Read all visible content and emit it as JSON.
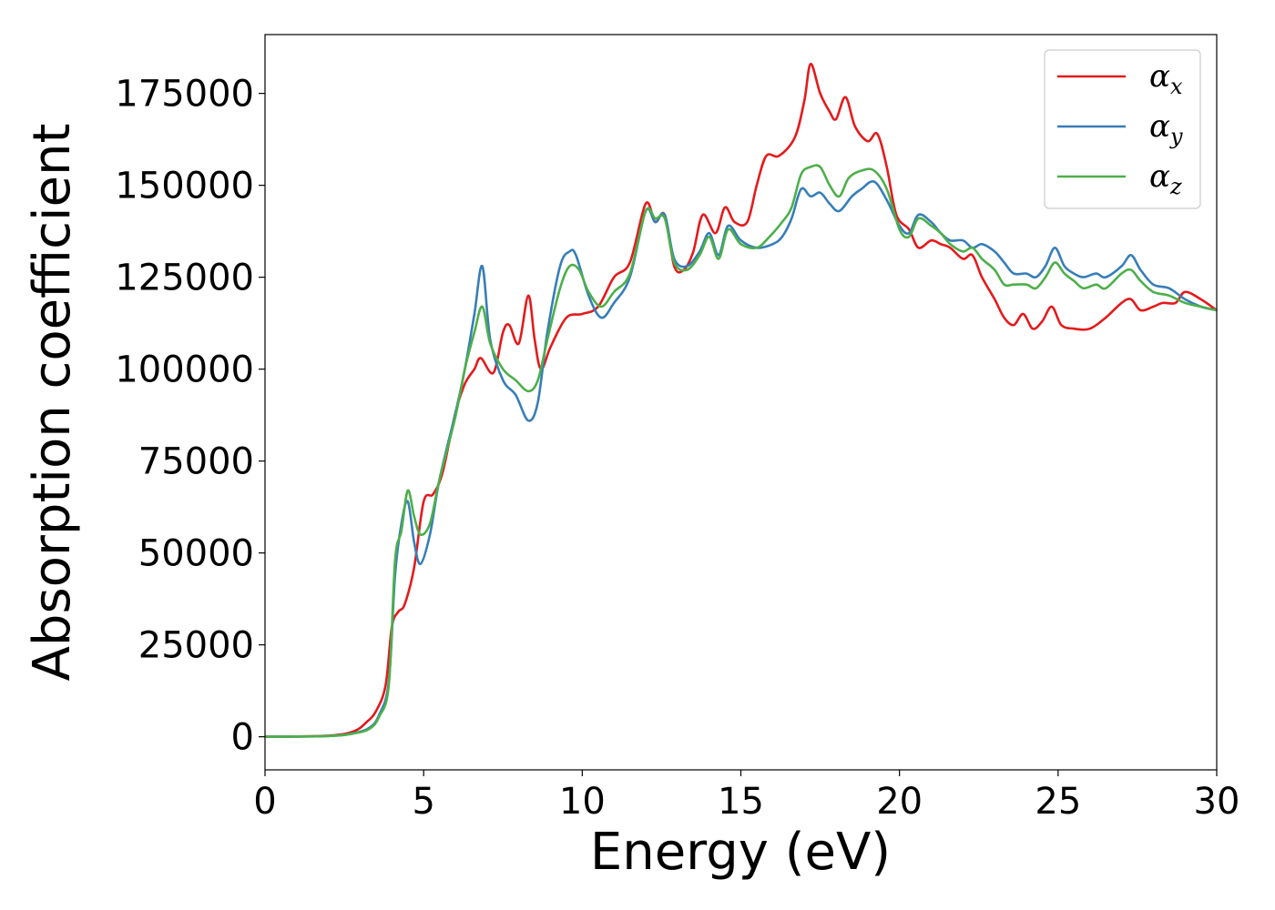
{
  "chart_data": {
    "type": "line",
    "xlabel": "Energy (eV)",
    "ylabel": "Absorption coefficient",
    "xlim": [
      0,
      30
    ],
    "ylim": [
      -9000,
      191000
    ],
    "x_ticks": [
      0,
      5,
      10,
      15,
      20,
      25,
      30
    ],
    "x_tick_labels": [
      "0",
      "5",
      "10",
      "15",
      "20",
      "25",
      "30"
    ],
    "y_ticks": [
      0,
      25000,
      50000,
      75000,
      100000,
      125000,
      150000,
      175000
    ],
    "y_tick_labels": [
      "0",
      "25000",
      "50000",
      "75000",
      "100000",
      "125000",
      "150000",
      "175000"
    ],
    "grid": false,
    "legend_position": "top-right",
    "colors": {
      "x": "#e41a1c",
      "y": "#377eb8",
      "z": "#4daf4a"
    },
    "series": [
      {
        "name": "α_x",
        "legend_base": "α",
        "legend_sub": "x",
        "color": "#e41a1c",
        "points": [
          [
            0,
            0
          ],
          [
            2,
            300
          ],
          [
            2.8,
            1500
          ],
          [
            3.2,
            4000
          ],
          [
            3.5,
            7000
          ],
          [
            3.8,
            14000
          ],
          [
            4,
            30000
          ],
          [
            4.2,
            34000
          ],
          [
            4.4,
            36000
          ],
          [
            4.7,
            46000
          ],
          [
            5,
            64000
          ],
          [
            5.3,
            66000
          ],
          [
            5.6,
            72000
          ],
          [
            6,
            88000
          ],
          [
            6.3,
            96000
          ],
          [
            6.6,
            100000
          ],
          [
            6.8,
            103000
          ],
          [
            7.2,
            99000
          ],
          [
            7.5,
            110000
          ],
          [
            7.7,
            112000
          ],
          [
            8,
            107000
          ],
          [
            8.3,
            120000
          ],
          [
            8.5,
            108000
          ],
          [
            8.7,
            100000
          ],
          [
            9,
            106000
          ],
          [
            9.5,
            114000
          ],
          [
            10,
            115000
          ],
          [
            10.5,
            117000
          ],
          [
            11,
            125000
          ],
          [
            11.5,
            129000
          ],
          [
            12,
            145000
          ],
          [
            12.3,
            140000
          ],
          [
            12.6,
            142000
          ],
          [
            12.9,
            128000
          ],
          [
            13.2,
            127000
          ],
          [
            13.5,
            132000
          ],
          [
            13.8,
            142000
          ],
          [
            14.2,
            137000
          ],
          [
            14.5,
            144000
          ],
          [
            14.8,
            140000
          ],
          [
            15.2,
            140000
          ],
          [
            15.5,
            150000
          ],
          [
            15.8,
            158000
          ],
          [
            16.2,
            158000
          ],
          [
            16.7,
            163000
          ],
          [
            17,
            173000
          ],
          [
            17.2,
            183000
          ],
          [
            17.5,
            175000
          ],
          [
            17.8,
            170000
          ],
          [
            18,
            168000
          ],
          [
            18.3,
            174000
          ],
          [
            18.6,
            166000
          ],
          [
            19,
            162000
          ],
          [
            19.3,
            164000
          ],
          [
            19.6,
            155000
          ],
          [
            19.9,
            142000
          ],
          [
            20.3,
            138000
          ],
          [
            20.6,
            133000
          ],
          [
            21,
            135000
          ],
          [
            21.3,
            134000
          ],
          [
            21.6,
            133000
          ],
          [
            22,
            130000
          ],
          [
            22.3,
            131000
          ],
          [
            22.6,
            125000
          ],
          [
            23,
            119000
          ],
          [
            23.3,
            114000
          ],
          [
            23.6,
            112000
          ],
          [
            23.9,
            115000
          ],
          [
            24.2,
            111000
          ],
          [
            24.5,
            113000
          ],
          [
            24.8,
            117000
          ],
          [
            25.1,
            112000
          ],
          [
            25.5,
            111000
          ],
          [
            26,
            111000
          ],
          [
            26.5,
            114000
          ],
          [
            27,
            118000
          ],
          [
            27.3,
            119000
          ],
          [
            27.6,
            116000
          ],
          [
            28,
            117000
          ],
          [
            28.3,
            118000
          ],
          [
            28.7,
            118000
          ],
          [
            29,
            121000
          ],
          [
            29.5,
            119000
          ],
          [
            30,
            116000
          ]
        ]
      },
      {
        "name": "α_y",
        "legend_base": "α",
        "legend_sub": "y",
        "color": "#377eb8",
        "points": [
          [
            0,
            0
          ],
          [
            2,
            200
          ],
          [
            2.8,
            1000
          ],
          [
            3.3,
            2500
          ],
          [
            3.6,
            6000
          ],
          [
            3.9,
            15000
          ],
          [
            4.1,
            44000
          ],
          [
            4.3,
            58000
          ],
          [
            4.5,
            64000
          ],
          [
            4.7,
            53000
          ],
          [
            4.9,
            47000
          ],
          [
            5.2,
            55000
          ],
          [
            5.5,
            70000
          ],
          [
            6,
            88000
          ],
          [
            6.3,
            100000
          ],
          [
            6.6,
            115000
          ],
          [
            6.85,
            128000
          ],
          [
            7.1,
            108000
          ],
          [
            7.5,
            97000
          ],
          [
            7.9,
            93000
          ],
          [
            8.3,
            86000
          ],
          [
            8.6,
            91000
          ],
          [
            8.9,
            110000
          ],
          [
            9.3,
            128000
          ],
          [
            9.6,
            132000
          ],
          [
            9.8,
            131000
          ],
          [
            10.2,
            120000
          ],
          [
            10.6,
            114000
          ],
          [
            11,
            118000
          ],
          [
            11.5,
            125000
          ],
          [
            12,
            143000
          ],
          [
            12.3,
            140000
          ],
          [
            12.6,
            142000
          ],
          [
            12.9,
            130000
          ],
          [
            13.3,
            128000
          ],
          [
            13.7,
            132000
          ],
          [
            14,
            137000
          ],
          [
            14.3,
            131000
          ],
          [
            14.6,
            139000
          ],
          [
            15,
            135000
          ],
          [
            15.5,
            133000
          ],
          [
            16,
            134000
          ],
          [
            16.3,
            136000
          ],
          [
            16.6,
            141000
          ],
          [
            16.9,
            149000
          ],
          [
            17.2,
            147000
          ],
          [
            17.5,
            148000
          ],
          [
            17.8,
            145000
          ],
          [
            18.1,
            143000
          ],
          [
            18.5,
            147000
          ],
          [
            18.8,
            149000
          ],
          [
            19.2,
            151000
          ],
          [
            19.6,
            146000
          ],
          [
            20,
            139000
          ],
          [
            20.3,
            137000
          ],
          [
            20.6,
            142000
          ],
          [
            21,
            140000
          ],
          [
            21.3,
            137000
          ],
          [
            21.6,
            135000
          ],
          [
            22,
            135000
          ],
          [
            22.3,
            133000
          ],
          [
            22.6,
            134000
          ],
          [
            23,
            132000
          ],
          [
            23.3,
            129000
          ],
          [
            23.6,
            126000
          ],
          [
            24,
            126000
          ],
          [
            24.3,
            125000
          ],
          [
            24.6,
            128000
          ],
          [
            24.9,
            133000
          ],
          [
            25.2,
            128000
          ],
          [
            25.5,
            126000
          ],
          [
            25.8,
            125000
          ],
          [
            26.2,
            126000
          ],
          [
            26.5,
            125000
          ],
          [
            27,
            128000
          ],
          [
            27.3,
            131000
          ],
          [
            27.6,
            127000
          ],
          [
            28,
            123000
          ],
          [
            28.5,
            122000
          ],
          [
            29,
            119000
          ],
          [
            29.5,
            117000
          ],
          [
            30,
            116000
          ]
        ]
      },
      {
        "name": "α_z",
        "legend_base": "α",
        "legend_sub": "z",
        "color": "#4daf4a",
        "points": [
          [
            0,
            0
          ],
          [
            2,
            200
          ],
          [
            2.8,
            900
          ],
          [
            3.3,
            2200
          ],
          [
            3.6,
            5500
          ],
          [
            3.9,
            14000
          ],
          [
            4.1,
            48000
          ],
          [
            4.3,
            56000
          ],
          [
            4.5,
            67000
          ],
          [
            4.7,
            60000
          ],
          [
            4.9,
            55000
          ],
          [
            5.2,
            58000
          ],
          [
            5.5,
            70000
          ],
          [
            6,
            87000
          ],
          [
            6.3,
            100000
          ],
          [
            6.6,
            110000
          ],
          [
            6.85,
            117000
          ],
          [
            7.1,
            107000
          ],
          [
            7.5,
            100000
          ],
          [
            7.9,
            97000
          ],
          [
            8.3,
            94000
          ],
          [
            8.6,
            97000
          ],
          [
            8.9,
            108000
          ],
          [
            9.3,
            122000
          ],
          [
            9.6,
            128000
          ],
          [
            9.9,
            127000
          ],
          [
            10.2,
            121000
          ],
          [
            10.6,
            117000
          ],
          [
            11,
            121000
          ],
          [
            11.5,
            126000
          ],
          [
            12,
            143000
          ],
          [
            12.3,
            141000
          ],
          [
            12.6,
            141000
          ],
          [
            12.9,
            129000
          ],
          [
            13.3,
            127000
          ],
          [
            13.7,
            131000
          ],
          [
            14,
            136000
          ],
          [
            14.3,
            130000
          ],
          [
            14.6,
            138000
          ],
          [
            15,
            134000
          ],
          [
            15.5,
            133000
          ],
          [
            15.9,
            136000
          ],
          [
            16.3,
            140000
          ],
          [
            16.6,
            144000
          ],
          [
            16.9,
            153000
          ],
          [
            17.2,
            155000
          ],
          [
            17.5,
            155000
          ],
          [
            17.8,
            150000
          ],
          [
            18.1,
            147000
          ],
          [
            18.4,
            152000
          ],
          [
            18.8,
            154000
          ],
          [
            19.2,
            154000
          ],
          [
            19.6,
            149000
          ],
          [
            20,
            138000
          ],
          [
            20.3,
            136000
          ],
          [
            20.6,
            141000
          ],
          [
            21,
            139000
          ],
          [
            21.3,
            137000
          ],
          [
            21.6,
            134000
          ],
          [
            22,
            132000
          ],
          [
            22.3,
            133000
          ],
          [
            22.6,
            130000
          ],
          [
            23,
            127000
          ],
          [
            23.3,
            123000
          ],
          [
            23.6,
            123000
          ],
          [
            24,
            123000
          ],
          [
            24.3,
            122000
          ],
          [
            24.6,
            125000
          ],
          [
            24.9,
            129000
          ],
          [
            25.2,
            126000
          ],
          [
            25.5,
            124000
          ],
          [
            25.8,
            122000
          ],
          [
            26.2,
            123000
          ],
          [
            26.5,
            122000
          ],
          [
            27,
            126000
          ],
          [
            27.3,
            127000
          ],
          [
            27.6,
            124000
          ],
          [
            28,
            121000
          ],
          [
            28.5,
            120000
          ],
          [
            29,
            118000
          ],
          [
            29.5,
            117000
          ],
          [
            30,
            116000
          ]
        ]
      }
    ]
  }
}
